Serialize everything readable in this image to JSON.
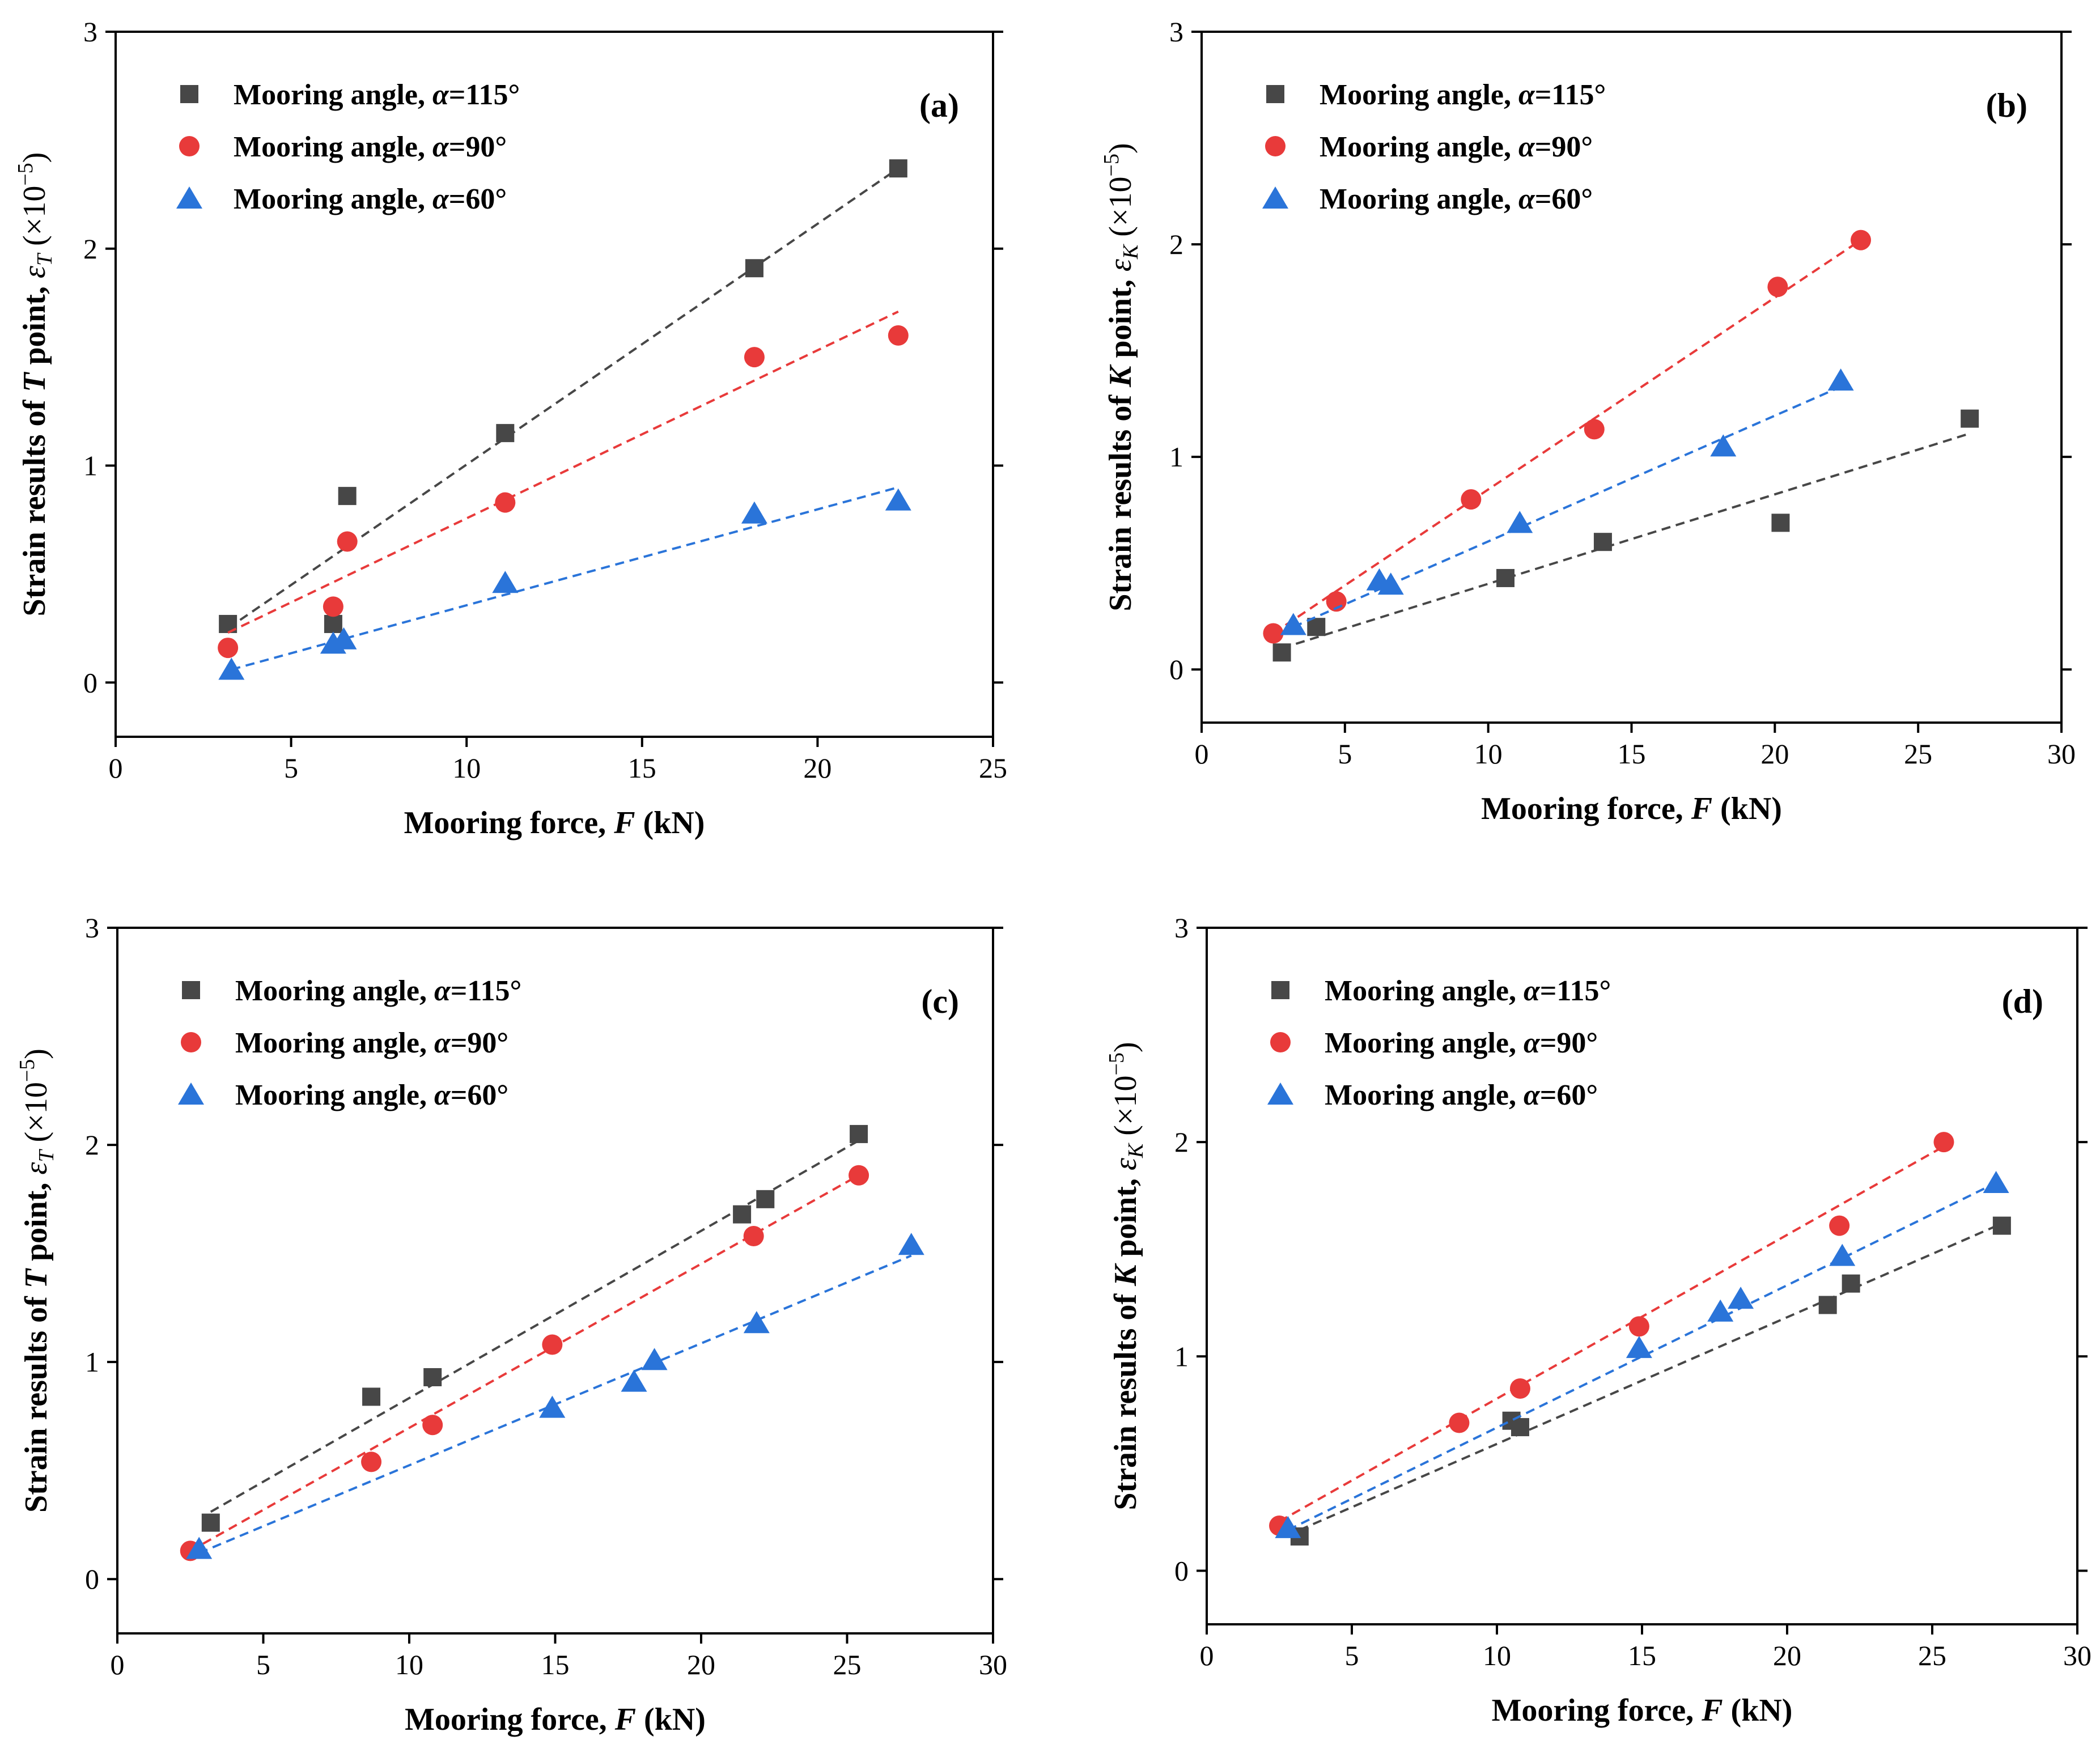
{
  "chart_data": [
    {
      "type": "scatter",
      "panel_label": "(a)",
      "xlabel_pre": "Mooring force, ",
      "xlabel_var": "F",
      "xlabel_post": " (kN)",
      "ylabel_pre": "Strain results of ",
      "ylabel_var": "T",
      "ylabel_mid": " point, ",
      "ylabel_sym": "ε",
      "ylabel_sub": "T",
      "ylabel_post": " (×10",
      "ylabel_exp": "−5",
      "ylabel_close": ")",
      "xlim": [
        0,
        25
      ],
      "ylim": [
        -0.25,
        3
      ],
      "xticks": [
        "0",
        "5",
        "10",
        "15",
        "20",
        "25"
      ],
      "yticks": [
        "0",
        "1",
        "2",
        "3"
      ],
      "xtick_values": [
        0,
        5,
        10,
        15,
        20,
        25
      ],
      "ytick_values": [
        0,
        1,
        2,
        3
      ],
      "series": [
        {
          "name": "115",
          "label_pre": "Mooring angle, ",
          "label_var": "α",
          "label_post": "=115°",
          "marker": "square",
          "color": "#474747",
          "line_color": "#474747",
          "x": [
            3.2,
            6.2,
            6.6,
            11.1,
            18.2,
            22.3
          ],
          "y": [
            0.27,
            0.27,
            0.86,
            1.15,
            1.91,
            2.37
          ],
          "fit": [
            [
              3.2,
              0.25
            ],
            [
              22.3,
              2.37
            ]
          ]
        },
        {
          "name": "90",
          "label_pre": "Mooring angle, ",
          "label_var": "α",
          "label_post": "=90°",
          "marker": "circle",
          "color": "#e83a3a",
          "line_color": "#e83a3a",
          "x": [
            3.2,
            6.2,
            6.6,
            11.1,
            18.2,
            22.3
          ],
          "y": [
            0.16,
            0.35,
            0.65,
            0.83,
            1.5,
            1.6
          ],
          "fit": [
            [
              3.2,
              0.23
            ],
            [
              22.3,
              1.71
            ]
          ]
        },
        {
          "name": "60",
          "label_pre": "Mooring angle, ",
          "label_var": "α",
          "label_post": "=60°",
          "marker": "triangle",
          "color": "#2a74d9",
          "line_color": "#2a74d9",
          "x": [
            3.3,
            6.2,
            6.5,
            11.1,
            18.2,
            22.3
          ],
          "y": [
            0.06,
            0.18,
            0.2,
            0.46,
            0.78,
            0.84
          ],
          "fit": [
            [
              3.3,
              0.06
            ],
            [
              22.3,
              0.9
            ]
          ]
        }
      ]
    },
    {
      "type": "scatter",
      "panel_label": "(b)",
      "xlabel_pre": "Mooring force, ",
      "xlabel_var": "F",
      "xlabel_post": " (kN)",
      "ylabel_pre": "Strain results of ",
      "ylabel_var": "K",
      "ylabel_mid": " point, ",
      "ylabel_sym": "ε",
      "ylabel_sub": "K",
      "ylabel_post": " (×10",
      "ylabel_exp": "−5",
      "ylabel_close": ")",
      "xlim": [
        0,
        30
      ],
      "ylim": [
        -0.25,
        3
      ],
      "xticks": [
        "0",
        "5",
        "10",
        "15",
        "20",
        "25",
        "30"
      ],
      "yticks": [
        "0",
        "1",
        "2",
        "3"
      ],
      "xtick_values": [
        0,
        5,
        10,
        15,
        20,
        25,
        30
      ],
      "ytick_values": [
        0,
        1,
        2,
        3
      ],
      "series": [
        {
          "name": "115",
          "label_pre": "Mooring angle, ",
          "label_var": "α",
          "label_post": "=115°",
          "marker": "square",
          "color": "#474747",
          "line_color": "#474747",
          "x": [
            2.8,
            4.0,
            10.6,
            14.0,
            20.2,
            26.8
          ],
          "y": [
            0.08,
            0.2,
            0.43,
            0.6,
            0.69,
            1.18
          ],
          "fit": [
            [
              2.8,
              0.1
            ],
            [
              26.8,
              1.11
            ]
          ]
        },
        {
          "name": "90",
          "label_pre": "Mooring angle, ",
          "label_var": "α",
          "label_post": "=90°",
          "marker": "circle",
          "color": "#e83a3a",
          "line_color": "#e83a3a",
          "x": [
            2.5,
            4.7,
            9.4,
            13.7,
            20.1,
            23.0
          ],
          "y": [
            0.17,
            0.32,
            0.8,
            1.13,
            1.8,
            2.02
          ],
          "fit": [
            [
              2.5,
              0.17
            ],
            [
              23.0,
              2.02
            ]
          ]
        },
        {
          "name": "60",
          "label_pre": "Mooring angle, ",
          "label_var": "α",
          "label_post": "=60°",
          "marker": "triangle",
          "color": "#2a74d9",
          "line_color": "#2a74d9",
          "x": [
            3.2,
            6.2,
            6.6,
            11.1,
            18.2,
            22.3
          ],
          "y": [
            0.21,
            0.42,
            0.4,
            0.69,
            1.05,
            1.36
          ],
          "fit": [
            [
              3.2,
              0.2
            ],
            [
              22.3,
              1.33
            ]
          ]
        }
      ]
    },
    {
      "type": "scatter",
      "panel_label": "(c)",
      "xlabel_pre": "Mooring force, ",
      "xlabel_var": "F",
      "xlabel_post": " (kN)",
      "ylabel_pre": "Strain results of ",
      "ylabel_var": "T",
      "ylabel_mid": " point, ",
      "ylabel_sym": "ε",
      "ylabel_sub": "T",
      "ylabel_post": " (×10",
      "ylabel_exp": "−5",
      "ylabel_close": ")",
      "xlim": [
        0,
        30
      ],
      "ylim": [
        -0.25,
        3
      ],
      "xticks": [
        "0",
        "5",
        "10",
        "15",
        "20",
        "25",
        "30"
      ],
      "yticks": [
        "0",
        "1",
        "2",
        "3"
      ],
      "xtick_values": [
        0,
        5,
        10,
        15,
        20,
        25,
        30
      ],
      "ytick_values": [
        0,
        1,
        2,
        3
      ],
      "series": [
        {
          "name": "115",
          "label_pre": "Mooring angle, ",
          "label_var": "α",
          "label_post": "=115°",
          "marker": "square",
          "color": "#474747",
          "line_color": "#474747",
          "x": [
            3.2,
            8.7,
            10.8,
            21.4,
            22.2,
            25.4
          ],
          "y": [
            0.26,
            0.84,
            0.93,
            1.68,
            1.75,
            2.05
          ],
          "fit": [
            [
              3.2,
              0.31
            ],
            [
              25.4,
              2.02
            ]
          ]
        },
        {
          "name": "90",
          "label_pre": "Mooring angle, ",
          "label_var": "α",
          "label_post": "=90°",
          "marker": "circle",
          "color": "#e83a3a",
          "line_color": "#e83a3a",
          "x": [
            2.5,
            8.7,
            10.8,
            14.9,
            21.8,
            25.4
          ],
          "y": [
            0.13,
            0.54,
            0.71,
            1.08,
            1.58,
            1.86
          ],
          "fit": [
            [
              2.5,
              0.13
            ],
            [
              25.4,
              1.86
            ]
          ]
        },
        {
          "name": "60",
          "label_pre": "Mooring angle, ",
          "label_var": "α",
          "label_post": "=60°",
          "marker": "triangle",
          "color": "#2a74d9",
          "line_color": "#2a74d9",
          "x": [
            2.8,
            14.9,
            17.7,
            18.4,
            21.9,
            27.2
          ],
          "y": [
            0.14,
            0.79,
            0.91,
            1.01,
            1.18,
            1.54
          ],
          "fit": [
            [
              2.8,
              0.12
            ],
            [
              27.2,
              1.49
            ]
          ]
        }
      ]
    },
    {
      "type": "scatter",
      "panel_label": "(d)",
      "xlabel_pre": "Mooring force, ",
      "xlabel_var": "F",
      "xlabel_post": " (kN)",
      "ylabel_pre": "Strain results of ",
      "ylabel_var": "K",
      "ylabel_mid": " point, ",
      "ylabel_sym": "ε",
      "ylabel_sub": "K",
      "ylabel_post": " (×10",
      "ylabel_exp": "−5",
      "ylabel_close": ")",
      "xlim": [
        0,
        30
      ],
      "ylim": [
        -0.25,
        3
      ],
      "xticks": [
        "0",
        "5",
        "10",
        "15",
        "20",
        "25",
        "30"
      ],
      "yticks": [
        "0",
        "1",
        "2",
        "3"
      ],
      "xtick_values": [
        0,
        5,
        10,
        15,
        20,
        25,
        30
      ],
      "ytick_values": [
        0,
        1,
        2,
        3
      ],
      "series": [
        {
          "name": "115",
          "label_pre": "Mooring angle, ",
          "label_var": "α",
          "label_post": "=115°",
          "marker": "square",
          "color": "#474747",
          "line_color": "#474747",
          "x": [
            3.2,
            10.5,
            10.8,
            21.4,
            22.2,
            27.4
          ],
          "y": [
            0.16,
            0.7,
            0.67,
            1.24,
            1.34,
            1.61
          ],
          "fit": [
            [
              3.2,
              0.19
            ],
            [
              27.4,
              1.62
            ]
          ]
        },
        {
          "name": "90",
          "label_pre": "Mooring angle, ",
          "label_var": "α",
          "label_post": "=90°",
          "marker": "circle",
          "color": "#e83a3a",
          "line_color": "#e83a3a",
          "x": [
            2.5,
            8.7,
            10.8,
            14.9,
            21.8,
            25.4
          ],
          "y": [
            0.21,
            0.69,
            0.85,
            1.14,
            1.61,
            2.0
          ],
          "fit": [
            [
              2.5,
              0.23
            ],
            [
              25.4,
              1.98
            ]
          ]
        },
        {
          "name": "60",
          "label_pre": "Mooring angle, ",
          "label_var": "α",
          "label_post": "=60°",
          "marker": "triangle",
          "color": "#2a74d9",
          "line_color": "#2a74d9",
          "x": [
            2.8,
            14.9,
            17.7,
            18.4,
            21.9,
            27.2
          ],
          "y": [
            0.2,
            1.04,
            1.21,
            1.27,
            1.47,
            1.81
          ],
          "fit": [
            [
              2.8,
              0.19
            ],
            [
              27.2,
              1.81
            ]
          ]
        }
      ]
    }
  ]
}
